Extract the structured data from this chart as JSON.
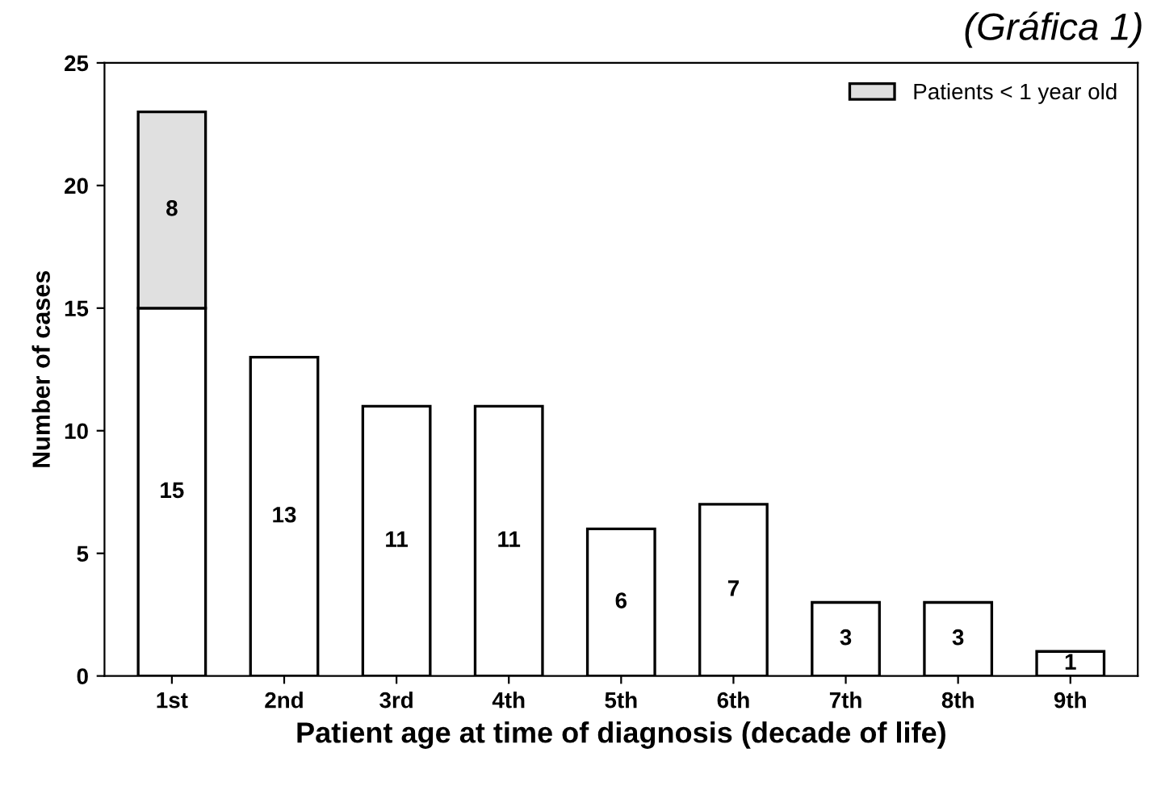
{
  "chart_data": {
    "type": "bar",
    "title": "(Gráfica 1)",
    "xlabel": "Patient age at time of diagnosis (decade of life)",
    "ylabel": "Number of cases",
    "categories": [
      "1st",
      "2nd",
      "3rd",
      "4th",
      "5th",
      "6th",
      "7th",
      "8th",
      "9th"
    ],
    "series": [
      {
        "color": "#ffffff",
        "values": [
          15,
          13,
          11,
          11,
          6,
          7,
          3,
          3,
          1
        ]
      },
      {
        "name": "Patients < 1 year old",
        "color": "#e0e0e0",
        "values": [
          8,
          null,
          null,
          null,
          null,
          null,
          null,
          null,
          null
        ]
      }
    ],
    "stacked": true,
    "data_labels": true,
    "ylim": [
      0,
      25
    ],
    "yticks": [
      0,
      5,
      10,
      15,
      20,
      25
    ],
    "grid": false,
    "legend": "top right"
  }
}
